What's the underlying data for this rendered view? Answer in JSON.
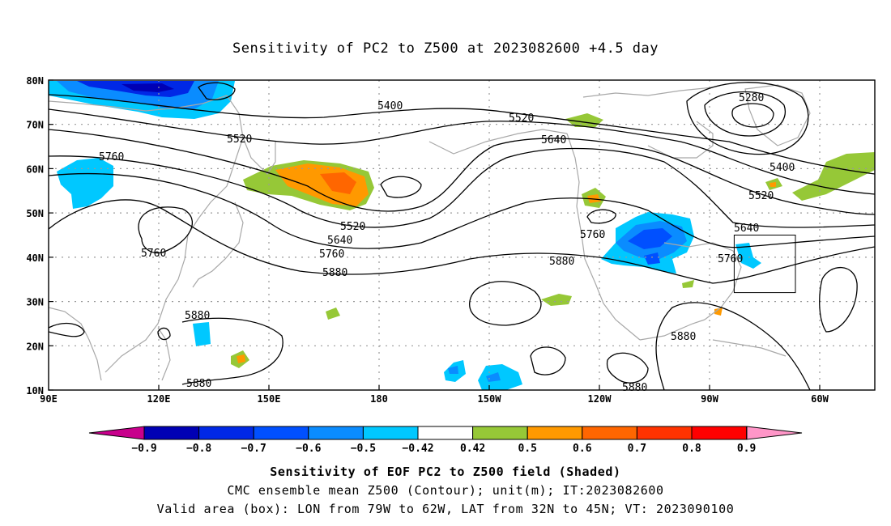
{
  "title": "Sensitivity of PC2 to Z500 at 2023082600 +4.5 day",
  "lat_labels": [
    "80N",
    "70N",
    "60N",
    "50N",
    "40N",
    "30N",
    "20N",
    "10N"
  ],
  "lon_labels": [
    "90E",
    "120E",
    "150E",
    "180",
    "150W",
    "120W",
    "90W",
    "60W"
  ],
  "contour_labels": [
    {
      "text": "5400"
    },
    {
      "text": "5280"
    },
    {
      "text": "5520"
    },
    {
      "text": "5520"
    },
    {
      "text": "5640"
    },
    {
      "text": "5760"
    },
    {
      "text": "5400"
    },
    {
      "text": "5520"
    },
    {
      "text": "5520"
    },
    {
      "text": "5640"
    },
    {
      "text": "5760"
    },
    {
      "text": "5880"
    },
    {
      "text": "5760"
    },
    {
      "text": "5880"
    },
    {
      "text": "5640"
    },
    {
      "text": "5760"
    },
    {
      "text": "5880"
    },
    {
      "text": "5880"
    },
    {
      "text": "5880"
    },
    {
      "text": "5760"
    },
    {
      "text": "5880"
    }
  ],
  "colorbar": {
    "labels": [
      "-0.9",
      "-0.8",
      "-0.7",
      "-0.6",
      "-0.5",
      "-0.42",
      "0.42",
      "0.5",
      "0.6",
      "0.7",
      "0.8",
      "0.9"
    ],
    "colors": [
      "#0000b4",
      "#0028e6",
      "#0050ff",
      "#0a8cff",
      "#00c8ff",
      "#ffffff",
      "#96c837",
      "#ff9900",
      "#ff6600",
      "#ff3300",
      "#ff0000"
    ],
    "low_end_color": "#c8008c",
    "high_end_color": "#ff96c8"
  },
  "valid_box": {
    "lon_from": "79W",
    "lon_to": "62W",
    "lat_from": "32N",
    "lat_to": "45N"
  },
  "captions": {
    "line1": "Sensitivity of EOF PC2 to Z500 field (Shaded)",
    "line2": "CMC ensemble mean Z500 (Contour); unit(m); IT:2023082600",
    "line3": "Valid area (box): LON from 79W to 62W, LAT from 32N to 45N; VT: 2023090100"
  }
}
